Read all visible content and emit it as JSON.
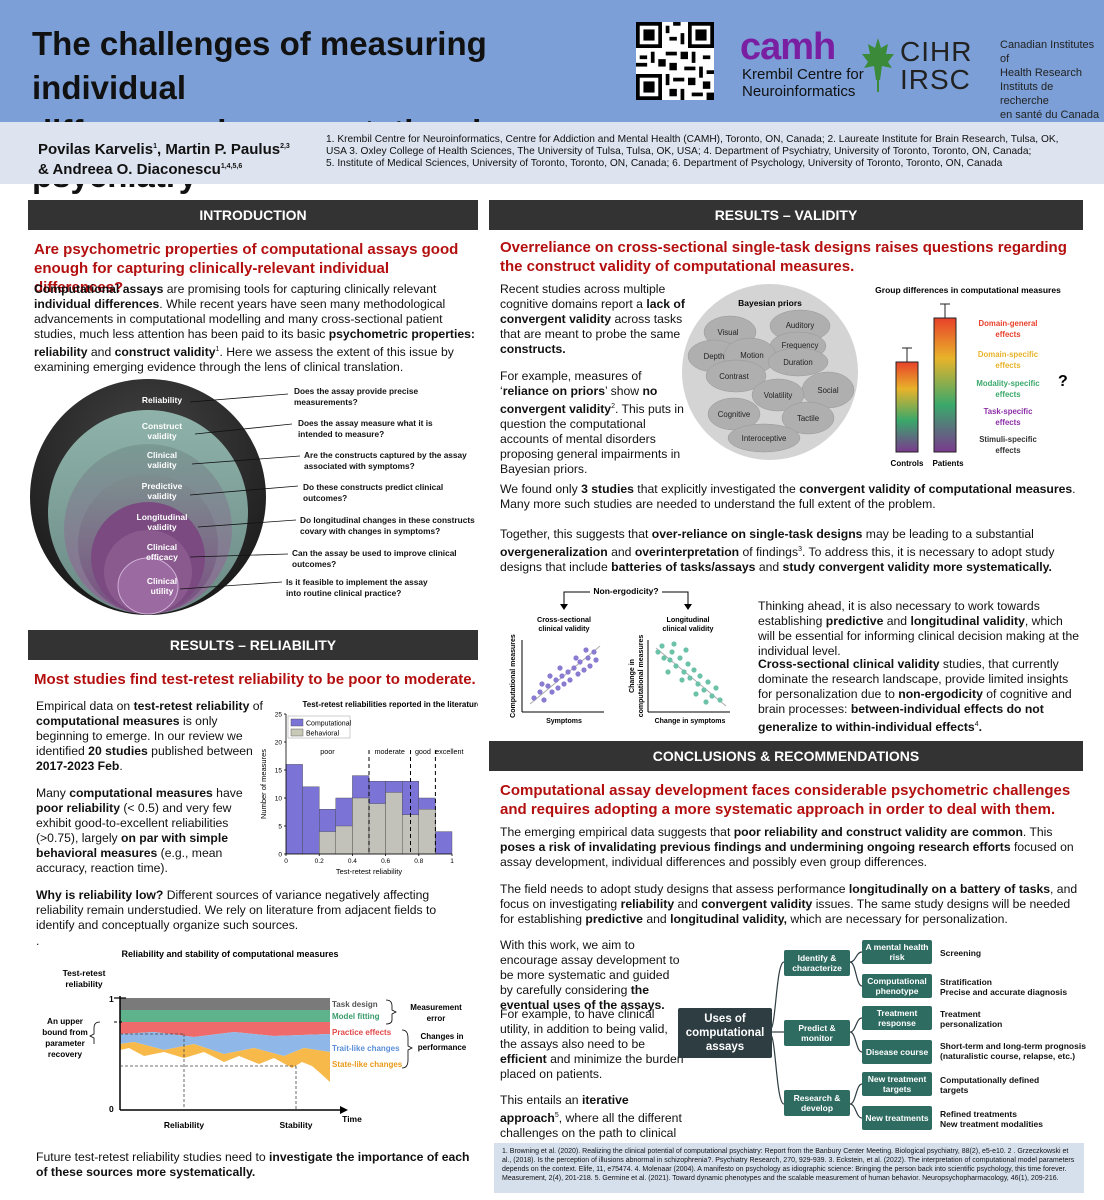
{
  "header": {
    "title_line1": "The challenges of measuring individual",
    "title_line2": "differences in computational psychiatry",
    "camh": "camh",
    "krembil_line1": "Krembil Centre for",
    "krembil_line2": "Neuroinformatics",
    "cihr": "CIHR",
    "irsc": "IRSC",
    "cihr_en_1": "Canadian Institutes of",
    "cihr_en_2": "Health Research",
    "cihr_fr_1": "Instituts de recherche",
    "cihr_fr_2": "en santé du Canada"
  },
  "authors": {
    "line1": "Povilas Karvelis",
    "line1_sup": "1",
    "line1b": ", Martin P. Paulus",
    "line1b_sup": "2,3",
    "line2": "& Andreea O. Diaconescu",
    "line2_sup": "1,4,5,6",
    "affil_1": "1. Krembil Centre for Neuroinformatics, Centre for Addiction and Mental Health (CAMH), Toronto, ON, Canada; 2. Laureate Institute for Brain Research, Tulsa, OK,",
    "affil_2": "USA 3. Oxley College of Health Sciences, The University of Tulsa, Tulsa, OK, USA; 4. Department of Psychiatry, University of Toronto, Toronto, ON, Canada;",
    "affil_3": "5. Institute of Medical Sciences, University of Toronto, Toronto, ON, Canada; 6. Department of Psychology, University of Toronto, Toronto, ON, Canada"
  },
  "intro": {
    "header": "INTRODUCTION",
    "question": "Are psychometric properties of computational assays good enough for capturing clinically-relevant individual differences?",
    "para": "Computational assays are promising tools for capturing clinically relevant individual differences. While recent years have seen many methodological advancements in computational modelling and many cross-sectional patient studies, much less attention has been paid to its basic psychometric properties: reliability and construct validity. Here we assess the extent of this issue by examining emerging evidence through the lens of clinical translation.",
    "circles": [
      {
        "label": "Reliability",
        "q": "Does the assay provide precise measurements?"
      },
      {
        "label": "Construct validity",
        "q": "Does the assay measure what it is intended to measure?"
      },
      {
        "label": "Clinical validity",
        "q": "Are the constructs captured by the assay associated with symptoms?"
      },
      {
        "label": "Predictive validity",
        "q": "Do these constructs predict clinical outcomes?"
      },
      {
        "label": "Longitudinal validity",
        "q": "Do longitudinal changes in these constructs covary with changes in symptoms?"
      },
      {
        "label": "Clinical efficacy",
        "q": "Can the assay be used to improve clinical outcomes?"
      },
      {
        "label": "Clinical utility",
        "q": "Is it feasible to implement the assay into routine clinical practice?"
      }
    ]
  },
  "reliability": {
    "header": "RESULTS – RELIABILITY",
    "question": "Most studies find test-retest reliability to be poor to moderate.",
    "para1": "Empirical data on test-retest reliability of computational measures is only beginning to emerge. In our review we identified 20 studies published between 2017-2023 Feb.",
    "para2": "Many computational measures have poor reliability (< 0.5) and very few exhibit good-to-excellent reliabilities (>0.75), largely on par with simple behavioral measures (e.g., mean accuracy, reaction time).",
    "para3": "Why is reliability low? Different sources of variance negatively affecting reliability remain understudied. We rely on literature from adjacent fields to identify and conceptually organize such sources.",
    "para4": "Future test-retest reliability studies need to investigate the importance of each of these sources more systematically.",
    "dot": "."
  },
  "chart_data": {
    "type": "bar",
    "title": "Test-retest reliabilities reported in the literature",
    "xlabel": "Test-retest reliability",
    "ylabel": "Number of measures",
    "x": [
      0.05,
      0.15,
      0.25,
      0.35,
      0.45,
      0.55,
      0.65,
      0.75,
      0.85,
      0.95
    ],
    "series": [
      {
        "name": "Computational",
        "values": [
          16,
          12,
          8,
          10,
          14,
          13,
          13,
          13,
          10,
          4
        ],
        "color": "#7b74d6"
      },
      {
        "name": "Behavioral",
        "values": [
          0,
          0,
          4,
          5,
          10,
          9,
          11,
          7,
          8,
          0
        ],
        "color": "#c9c9b8"
      }
    ],
    "xlim": [
      0,
      1
    ],
    "ylim": [
      0,
      25
    ],
    "xticks": [
      "0",
      "0.2",
      "0.4",
      "0.6",
      "0.8",
      "1"
    ],
    "yticks": [
      "0",
      "5",
      "10",
      "15",
      "20",
      "25"
    ],
    "thresholds": [
      0.5,
      0.75,
      0.9
    ],
    "region_labels": [
      "poor",
      "moderate",
      "good",
      "excellent"
    ],
    "legend": "top-left"
  },
  "rel_diagram": {
    "title": "Reliability and stability of computational measures",
    "ylabel1": "Test-retest",
    "ylabel2": "reliability",
    "y1": "1",
    "y0": "0",
    "bound1": "An upper",
    "bound2": "bound from",
    "bound3": "parameter",
    "bound4": "recovery",
    "layers": [
      "Task design",
      "Model fitting",
      "Practice effects",
      "Trait-like changes",
      "State-like changes"
    ],
    "group1": "Measurement error",
    "group2": "Changes in performance",
    "xlabel_rel": "Reliability",
    "xlabel_stab": "Stability",
    "xlabel_time": "Time"
  },
  "validity": {
    "header": "RESULTS – VALIDITY",
    "question": "Overreliance on cross-sectional single-task designs raises questions regarding the construct validity of computational measures.",
    "para1": "Recent studies across multiple cognitive domains report a lack of convergent validity across tasks that are meant to probe the same constructs.",
    "para2": "For example, measures of ‘reliance on priors’ show no convergent validity. This puts in question the computational accounts of mental disorders proposing general impairments in Bayesian priors.",
    "bayes_title": "Bayesian priors",
    "bayes_items": [
      "Visual",
      "Auditory",
      "Frequency",
      "Depth",
      "Motion",
      "Duration",
      "Contrast",
      "Social",
      "Volatility",
      "Cognitive",
      "Tactile",
      "Interoceptive"
    ],
    "group_title": "Group differences in computational measures",
    "controls": "Controls",
    "patients": "Patients",
    "effects": [
      "Domain-general effects",
      "Domain-specific effects",
      "Modality-specific effects",
      "Task-specific effects",
      "Stimuli-specific effects"
    ],
    "effect_colors": [
      "#e8412a",
      "#e8b32a",
      "#3aa86b",
      "#8c2ea6",
      "#333333"
    ],
    "qmark": "?",
    "para3": "We found only 3 studies that explicitly investigated the convergent validity of computational measures. Many more such studies are needed to understand the full extent of the problem.",
    "para4": "Together, this suggests that over-reliance on single-task designs may be leading to a substantial overgeneralization and overinterpretation of findings. To address this, it is necessary to adopt study designs that include batteries of tasks/assays and study convergent validity more systematically.",
    "ergo_title": "Non-ergodicity?",
    "ergo_left": "Cross-sectional clinical validity",
    "ergo_right": "Longitudinal clinical validity",
    "ergo_left_y": "Computational measures",
    "ergo_left_x": "Symptoms",
    "ergo_right_y": "Change in computational measures",
    "ergo_right_x": "Change in symptoms",
    "para5": "Thinking ahead, it is also necessary to work towards establishing predictive and longitudinal validity, which will be essential for informing clinical decision making at the individual level.",
    "para6": "Cross-sectional clinical validity studies, that currently dominate the research landscape, provide limited insights for personalization due to non-ergodicity of cognitive and brain processes: between-individual effects do not generalize to within-individual effects."
  },
  "conclusions": {
    "header": "CONCLUSIONS & RECOMMENDATIONS",
    "question": "Computational assay development faces considerable psychometric challenges and requires adopting a more systematic approach in order to deal with them.",
    "para1": "The emerging empirical data suggests that poor reliability and construct validity are common. This poses a risk of invalidating previous findings and undermining ongoing research efforts focused on assay development, individual differences and possibly even group differences.",
    "para2": "The field needs to adopt study designs that assess performance longitudinally on a battery of tasks, and focus on investigating reliability and convergent validity issues. The same study designs will be needed for establishing predictive and longitudinal validity, which are necessary for personalization.",
    "para3": "With this work, we aim to encourage assay development to be more systematic and guided by carefully considering the eventual uses of the assays.",
    "para4": "For example, to have clinical utility, in addition to being valid, the assays also need to be efficient and minimize the burden placed on patients.",
    "para5": "This entails an iterative approach, where all the different challenges on the path to clinical utility inform the assay development at every stage.",
    "tree_root": "Uses of computational assays",
    "tree_mid": [
      "Identify & characterize",
      "Predict & monitor",
      "Research & develop"
    ],
    "tree_leaf": [
      "A mental health risk",
      "Computational phenotype",
      "Treatment response",
      "Disease course",
      "New treatment targets",
      "New treatments"
    ],
    "tree_out": [
      "Screening",
      "Stratification Precise and accurate diagnosis",
      "Treatment personalization",
      "Short-term and long-term prognosis (naturalistic course, relapse, etc.)",
      "Computationally defined targets",
      "Refined treatments New treatment modalities"
    ]
  },
  "references": "1. Browning et al. (2020). Realizing the clinical potential of computational psychiatry: Report from the Banbury Center Meeting. Biological psychiatry, 88(2), e5-e10. 2 . Grzeczkowski et al., (2018). Is the perception of illusions abnormal in schizophrenia?. Psychiatry Research, 270, 929-939. 3. Eckstein, et al. (2022). The interpretation of computational model parameters depends on the context. Elife, 11, e75474. 4. Molenaar (2004). A manifesto on psychology as idiographic science: Bringing the person back into scientific psychology, this time forever. Measurement, 2(4), 201-218. 5. Germine et al. (2021). Toward dynamic phenotypes and the scalable measurement of human behavior. Neuropsychopharmacology, 46(1), 209-216."
}
